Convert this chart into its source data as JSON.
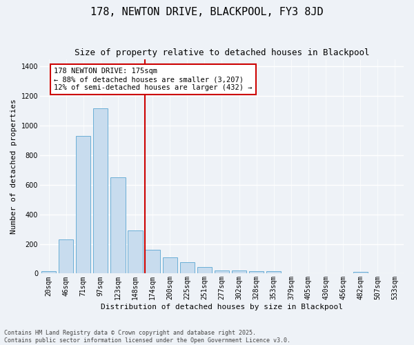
{
  "title": "178, NEWTON DRIVE, BLACKPOOL, FY3 8JD",
  "subtitle": "Size of property relative to detached houses in Blackpool",
  "xlabel": "Distribution of detached houses by size in Blackpool",
  "ylabel": "Number of detached properties",
  "categories": [
    "20sqm",
    "46sqm",
    "71sqm",
    "97sqm",
    "123sqm",
    "148sqm",
    "174sqm",
    "200sqm",
    "225sqm",
    "251sqm",
    "277sqm",
    "302sqm",
    "328sqm",
    "353sqm",
    "379sqm",
    "405sqm",
    "430sqm",
    "456sqm",
    "482sqm",
    "507sqm",
    "533sqm"
  ],
  "values": [
    15,
    230,
    930,
    1115,
    650,
    290,
    160,
    110,
    75,
    42,
    22,
    20,
    17,
    17,
    0,
    0,
    0,
    0,
    10,
    0,
    0
  ],
  "bar_color": "#c8dcee",
  "bar_edge_color": "#6aaed6",
  "background_color": "#eef2f7",
  "grid_color": "#ffffff",
  "vline_color": "#cc0000",
  "vline_index": 6,
  "annotation_text": "178 NEWTON DRIVE: 175sqm\n← 88% of detached houses are smaller (3,207)\n12% of semi-detached houses are larger (432) →",
  "annotation_box_color": "#cc0000",
  "annotation_fill": "#ffffff",
  "ylim": [
    0,
    1450
  ],
  "yticks": [
    0,
    200,
    400,
    600,
    800,
    1000,
    1200,
    1400
  ],
  "footnote": "Contains HM Land Registry data © Crown copyright and database right 2025.\nContains public sector information licensed under the Open Government Licence v3.0.",
  "title_fontsize": 11,
  "subtitle_fontsize": 9,
  "xlabel_fontsize": 8,
  "ylabel_fontsize": 8,
  "tick_fontsize": 7,
  "annotation_fontsize": 7.5,
  "footnote_fontsize": 6
}
